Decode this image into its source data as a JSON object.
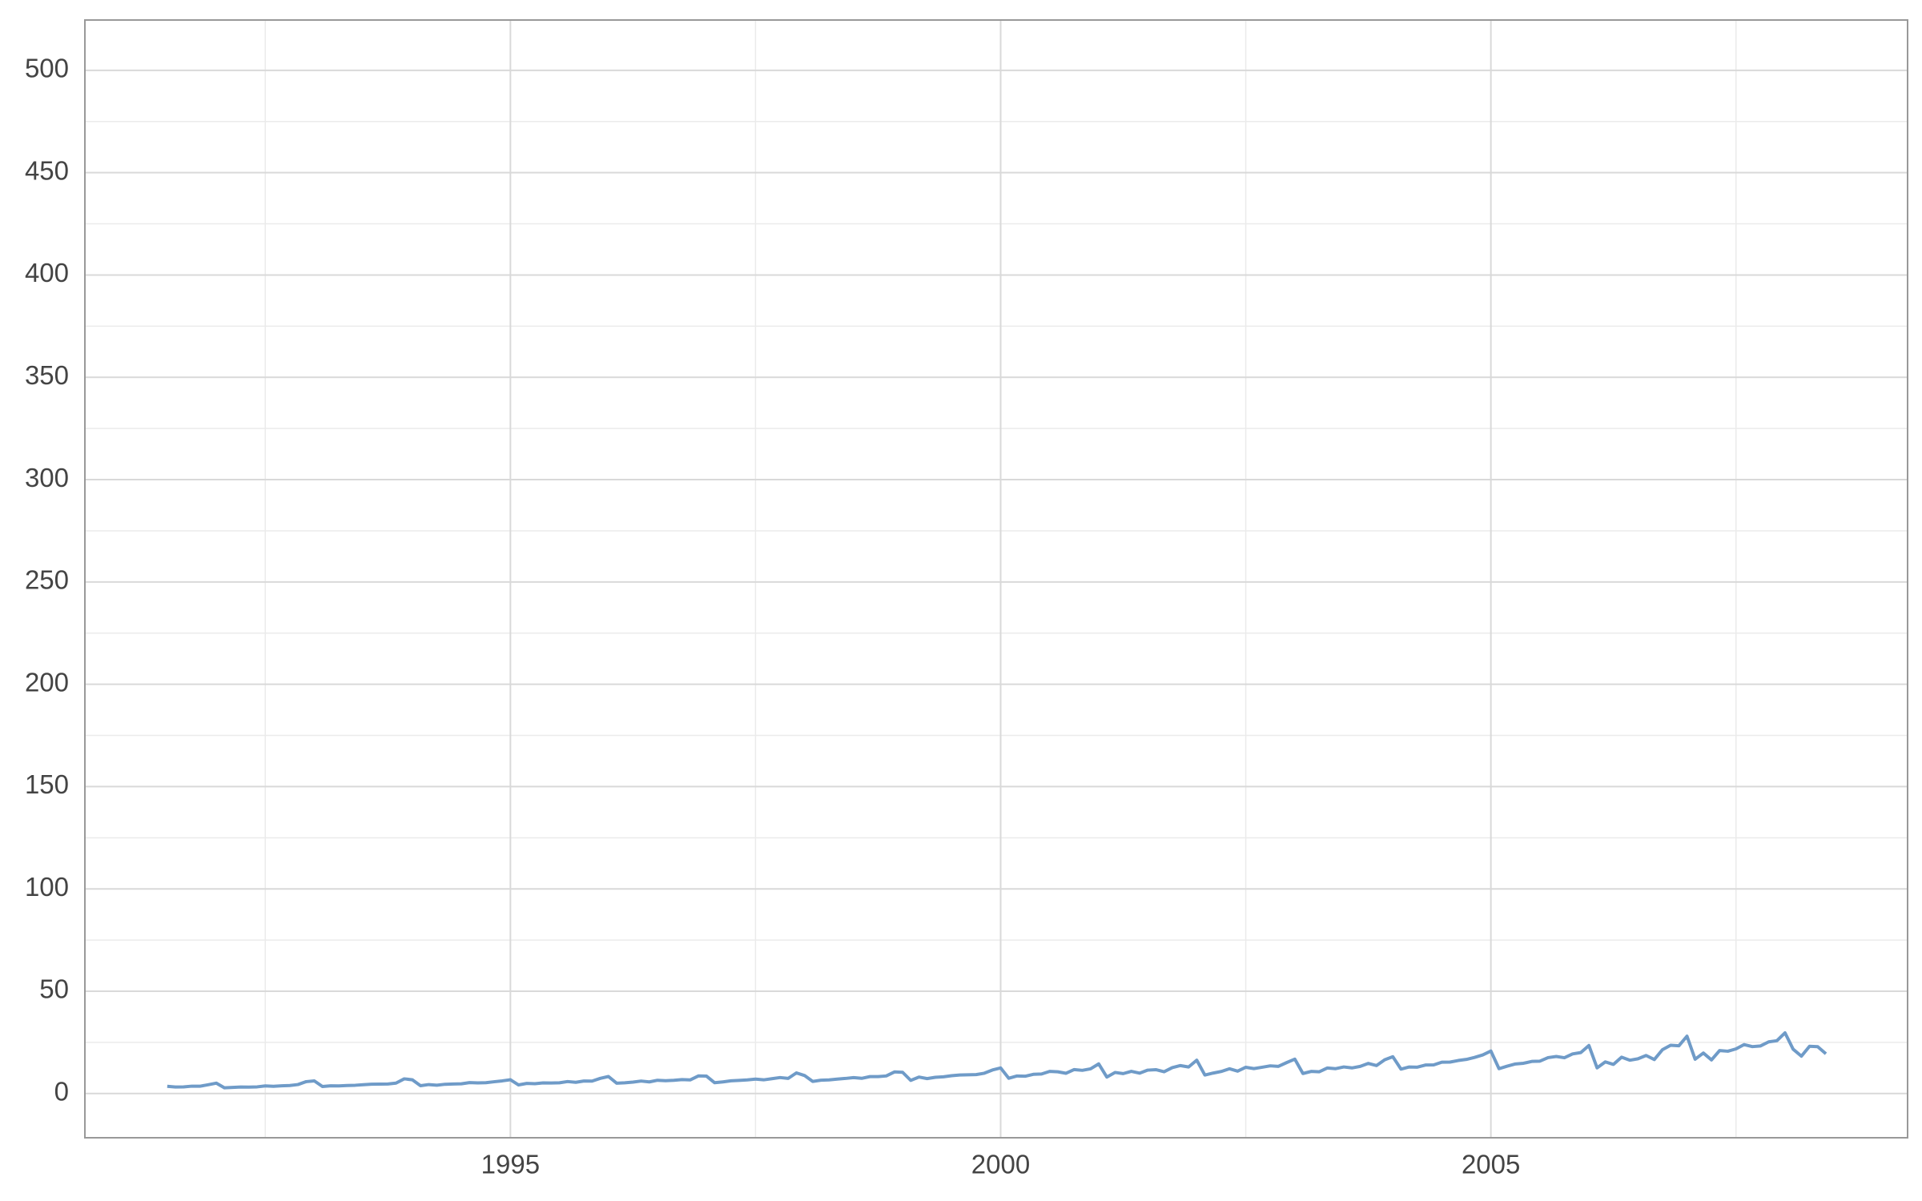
{
  "chart_data": {
    "type": "line",
    "x": [
      1991.5,
      1991.583,
      1991.667,
      1991.75,
      1991.833,
      1991.917,
      1992.0,
      1992.083,
      1992.167,
      1992.25,
      1992.333,
      1992.417,
      1992.5,
      1992.583,
      1992.667,
      1992.75,
      1992.833,
      1992.917,
      1993.0,
      1993.083,
      1993.167,
      1993.25,
      1993.333,
      1993.417,
      1993.5,
      1993.583,
      1993.667,
      1993.75,
      1993.833,
      1993.917,
      1994.0,
      1994.083,
      1994.167,
      1994.25,
      1994.333,
      1994.417,
      1994.5,
      1994.583,
      1994.667,
      1994.75,
      1994.833,
      1994.917,
      1995.0,
      1995.083,
      1995.167,
      1995.25,
      1995.333,
      1995.417,
      1995.5,
      1995.583,
      1995.667,
      1995.75,
      1995.833,
      1995.917,
      1996.0,
      1996.083,
      1996.167,
      1996.25,
      1996.333,
      1996.417,
      1996.5,
      1996.583,
      1996.667,
      1996.75,
      1996.833,
      1996.917,
      1997.0,
      1997.083,
      1997.167,
      1997.25,
      1997.333,
      1997.417,
      1997.5,
      1997.583,
      1997.667,
      1997.75,
      1997.833,
      1997.917,
      1998.0,
      1998.083,
      1998.167,
      1998.25,
      1998.333,
      1998.417,
      1998.5,
      1998.583,
      1998.667,
      1998.75,
      1998.833,
      1998.917,
      1999.0,
      1999.083,
      1999.167,
      1999.25,
      1999.333,
      1999.417,
      1999.5,
      1999.583,
      1999.667,
      1999.75,
      1999.833,
      1999.917,
      2000.0,
      2000.083,
      2000.167,
      2000.25,
      2000.333,
      2000.417,
      2000.5,
      2000.583,
      2000.667,
      2000.75,
      2000.833,
      2000.917,
      2001.0,
      2001.083,
      2001.167,
      2001.25,
      2001.333,
      2001.417,
      2001.5,
      2001.583,
      2001.667,
      2001.75,
      2001.833,
      2001.917,
      2002.0,
      2002.083,
      2002.167,
      2002.25,
      2002.333,
      2002.417,
      2002.5,
      2002.583,
      2002.667,
      2002.75,
      2002.833,
      2002.917,
      2003.0,
      2003.083,
      2003.167,
      2003.25,
      2003.333,
      2003.417,
      2003.5,
      2003.583,
      2003.667,
      2003.75,
      2003.833,
      2003.917,
      2004.0,
      2004.083,
      2004.167,
      2004.25,
      2004.333,
      2004.417,
      2004.5,
      2004.583,
      2004.667,
      2004.75,
      2004.833,
      2004.917,
      2005.0,
      2005.083,
      2005.167,
      2005.25,
      2005.333,
      2005.417,
      2005.5,
      2005.583,
      2005.667,
      2005.75,
      2005.833,
      2005.917,
      2006.0,
      2006.083,
      2006.167,
      2006.25,
      2006.333,
      2006.417,
      2006.5,
      2006.583,
      2006.667,
      2006.75,
      2006.833,
      2006.917,
      2007.0,
      2007.083,
      2007.167,
      2007.25,
      2007.333,
      2007.417,
      2007.5,
      2007.583,
      2007.667,
      2007.75,
      2007.833,
      2007.917,
      2008.0,
      2008.083,
      2008.167,
      2008.25,
      2008.333,
      2008.417
    ],
    "values": [
      3.53,
      3.18,
      3.25,
      3.61,
      3.57,
      4.31,
      5.09,
      2.81,
      2.99,
      3.2,
      3.13,
      3.27,
      3.74,
      3.56,
      3.78,
      3.92,
      4.39,
      5.81,
      6.19,
      3.45,
      3.77,
      3.73,
      3.91,
      4.05,
      4.32,
      4.56,
      4.61,
      4.67,
      5.09,
      7.18,
      6.73,
      3.84,
      4.39,
      4.08,
      4.54,
      4.65,
      4.75,
      5.35,
      5.2,
      5.3,
      5.77,
      6.2,
      6.75,
      4.22,
      4.95,
      4.82,
      5.19,
      5.17,
      5.26,
      5.86,
      5.49,
      6.12,
      6.09,
      7.42,
      8.33,
      5.07,
      5.26,
      5.6,
      6.11,
      5.69,
      6.49,
      6.3,
      6.47,
      6.83,
      6.65,
      8.61,
      8.52,
      5.28,
      5.71,
      6.21,
      6.41,
      6.67,
      7.05,
      6.7,
      7.25,
      7.82,
      7.4,
      10.1,
      8.8,
      5.92,
      6.53,
      6.68,
      7.06,
      7.38,
      7.81,
      7.43,
      8.28,
      8.26,
      8.6,
      10.56,
      10.39,
      6.42,
      8.06,
      7.3,
      7.94,
      8.17,
      8.72,
      9.07,
      9.18,
      9.25,
      9.93,
      11.53,
      12.51,
      7.46,
      8.59,
      8.47,
      9.39,
      9.56,
      10.83,
      10.64,
      9.91,
      11.71,
      11.34,
      12.08,
      14.5,
      8.05,
      10.31,
      9.75,
      10.85,
      9.96,
      11.44,
      11.66,
      10.65,
      12.65,
      13.67,
      12.97,
      16.3,
      9.05,
      10.0,
      10.79,
      12.11,
      10.95,
      12.84,
      12.2,
      12.85,
      13.54,
      13.29,
      15.13,
      16.83,
      9.8,
      10.82,
      10.65,
      12.51,
      12.16,
      13.0,
      12.52,
      13.27,
      14.73,
      13.67,
      16.5,
      18.0,
      11.94,
      13.0,
      12.88,
      13.94,
      13.99,
      15.34,
      15.37,
      16.14,
      16.69,
      17.64,
      18.87,
      20.78,
      12.15,
      13.4,
      14.46,
      14.8,
      15.71,
      15.83,
      17.55,
      18.1,
      17.5,
      19.35,
      20.03,
      23.49,
      12.54,
      15.47,
      14.23,
      17.78,
      16.29,
      16.98,
      18.61,
      16.62,
      21.43,
      23.58,
      23.33,
      28.04,
      16.76,
      19.79,
      16.43,
      21.0,
      20.68,
      21.83,
      23.93,
      22.93,
      23.26,
      25.25,
      25.81,
      29.67,
      21.65,
      18.26,
      23.11,
      22.91,
      19.43
    ],
    "color": "#6f9bc8",
    "xlim": [
      1990.66,
      2009.25
    ],
    "xticks": [
      1995,
      2000,
      2005
    ],
    "xminor": [
      1992.5,
      1997.5,
      2002.5,
      2007.5
    ],
    "ylim": [
      -21.6,
      524.6
    ],
    "yticks": [
      0,
      50,
      100,
      150,
      200,
      250,
      300,
      350,
      400,
      450,
      500
    ],
    "yminor": [
      25,
      75,
      125,
      175,
      225,
      275,
      325,
      375,
      425,
      475
    ],
    "grid": true
  }
}
